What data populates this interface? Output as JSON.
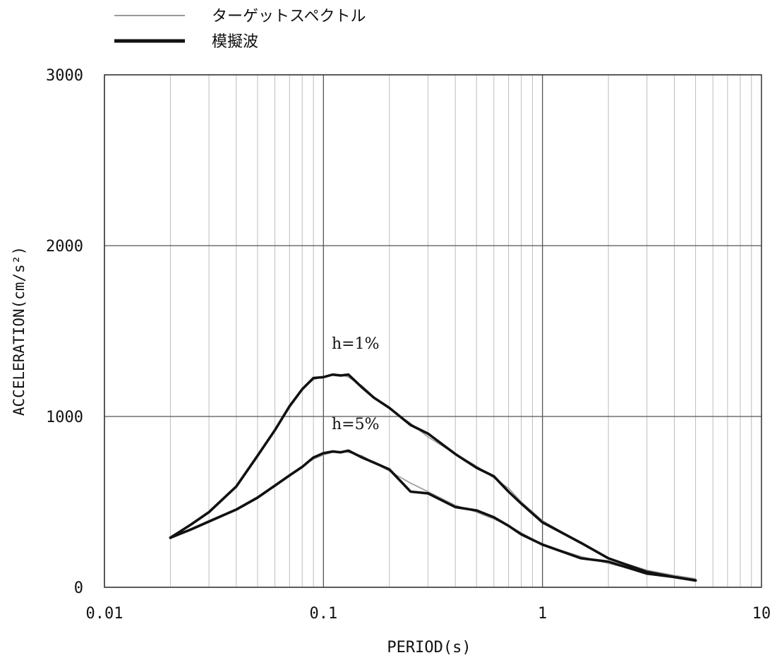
{
  "legend": {
    "target_label": "ターゲットスペクトル",
    "simulated_label": "模擬波",
    "target_color": "#9a9a9a",
    "simulated_color": "#111111"
  },
  "chart_data": {
    "type": "line",
    "xscale": "log",
    "xlabel": "PERIOD(s)",
    "ylabel": "ACCELERATION(cm/s²)",
    "xlim": [
      0.01,
      10
    ],
    "ylim": [
      0,
      3000
    ],
    "x_ticks": [
      "0.01",
      "0.1",
      "1",
      "10"
    ],
    "y_ticks": [
      "0",
      "1000",
      "2000",
      "3000"
    ],
    "grid": true,
    "legend_position": "top-left, outside plot",
    "annotations": [
      "h=1%",
      "h=5%"
    ],
    "series": [
      {
        "name": "ターゲットスペクトル",
        "group": "h=1%",
        "style": "thin-gray",
        "x": [
          0.02,
          0.025,
          0.03,
          0.04,
          0.05,
          0.06,
          0.07,
          0.08,
          0.09,
          0.1,
          0.11,
          0.12,
          0.13,
          0.15,
          0.17,
          0.2,
          0.25,
          0.3,
          0.4,
          0.5,
          0.6,
          0.7,
          0.8,
          1.0,
          1.5,
          2.0,
          3.0,
          4.0,
          5.0
        ],
        "y": [
          290,
          370,
          440,
          590,
          770,
          920,
          1060,
          1160,
          1215,
          1235,
          1245,
          1245,
          1230,
          1180,
          1115,
          1045,
          960,
          880,
          780,
          710,
          640,
          580,
          500,
          390,
          260,
          170,
          100,
          70,
          50
        ]
      },
      {
        "name": "模擬波",
        "group": "h=1%",
        "style": "thick-black",
        "x": [
          0.02,
          0.025,
          0.03,
          0.04,
          0.05,
          0.06,
          0.07,
          0.08,
          0.09,
          0.1,
          0.11,
          0.12,
          0.13,
          0.15,
          0.17,
          0.2,
          0.25,
          0.3,
          0.4,
          0.5,
          0.6,
          0.7,
          0.8,
          1.0,
          1.5,
          2.0,
          3.0,
          4.0,
          5.0
        ],
        "y": [
          290,
          370,
          440,
          590,
          770,
          920,
          1060,
          1160,
          1225,
          1230,
          1245,
          1240,
          1245,
          1170,
          1110,
          1050,
          950,
          900,
          780,
          700,
          650,
          560,
          490,
          380,
          260,
          170,
          90,
          60,
          40
        ]
      },
      {
        "name": "ターゲットスペクトル",
        "group": "h=5%",
        "style": "thin-gray",
        "x": [
          0.02,
          0.025,
          0.03,
          0.04,
          0.05,
          0.06,
          0.07,
          0.08,
          0.09,
          0.1,
          0.11,
          0.12,
          0.13,
          0.15,
          0.17,
          0.2,
          0.25,
          0.3,
          0.4,
          0.5,
          0.6,
          0.7,
          0.8,
          1.0,
          1.5,
          2.0,
          3.0,
          4.0,
          5.0
        ],
        "y": [
          290,
          345,
          390,
          460,
          530,
          600,
          660,
          710,
          750,
          775,
          790,
          795,
          790,
          770,
          730,
          680,
          610,
          560,
          480,
          440,
          400,
          360,
          320,
          250,
          180,
          140,
          85,
          60,
          45
        ]
      },
      {
        "name": "模擬波",
        "group": "h=5%",
        "style": "thick-black",
        "x": [
          0.02,
          0.025,
          0.03,
          0.04,
          0.05,
          0.06,
          0.07,
          0.08,
          0.09,
          0.1,
          0.11,
          0.12,
          0.13,
          0.15,
          0.17,
          0.2,
          0.25,
          0.3,
          0.4,
          0.5,
          0.6,
          0.7,
          0.8,
          1.0,
          1.5,
          2.0,
          3.0,
          4.0,
          5.0
        ],
        "y": [
          290,
          340,
          385,
          455,
          525,
          595,
          655,
          705,
          760,
          785,
          795,
          790,
          800,
          760,
          730,
          690,
          560,
          550,
          470,
          450,
          410,
          360,
          310,
          250,
          170,
          150,
          80,
          60,
          40
        ]
      }
    ]
  }
}
